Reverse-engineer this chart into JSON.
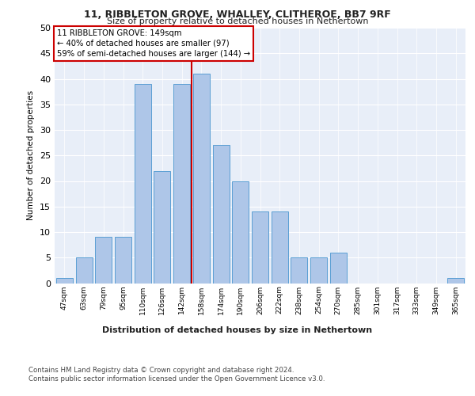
{
  "title1": "11, RIBBLETON GROVE, WHALLEY, CLITHEROE, BB7 9RF",
  "title2": "Size of property relative to detached houses in Nethertown",
  "xlabel": "Distribution of detached houses by size in Nethertown",
  "ylabel": "Number of detached properties",
  "categories": [
    "47sqm",
    "63sqm",
    "79sqm",
    "95sqm",
    "110sqm",
    "126sqm",
    "142sqm",
    "158sqm",
    "174sqm",
    "190sqm",
    "206sqm",
    "222sqm",
    "238sqm",
    "254sqm",
    "270sqm",
    "285sqm",
    "301sqm",
    "317sqm",
    "333sqm",
    "349sqm",
    "365sqm"
  ],
  "values": [
    1,
    5,
    9,
    9,
    39,
    22,
    39,
    41,
    27,
    20,
    14,
    14,
    5,
    5,
    6,
    0,
    0,
    0,
    0,
    0,
    1
  ],
  "bar_color": "#aec6e8",
  "bar_edge_color": "#5a9fd4",
  "vline_x": 6.5,
  "vline_color": "#cc0000",
  "annotation_text": "11 RIBBLETON GROVE: 149sqm\n← 40% of detached houses are smaller (97)\n59% of semi-detached houses are larger (144) →",
  "annotation_box_color": "#ffffff",
  "annotation_box_edge": "#cc0000",
  "ylim": [
    0,
    50
  ],
  "yticks": [
    0,
    5,
    10,
    15,
    20,
    25,
    30,
    35,
    40,
    45,
    50
  ],
  "background_color": "#e8eef8",
  "footer1": "Contains HM Land Registry data © Crown copyright and database right 2024.",
  "footer2": "Contains public sector information licensed under the Open Government Licence v3.0."
}
